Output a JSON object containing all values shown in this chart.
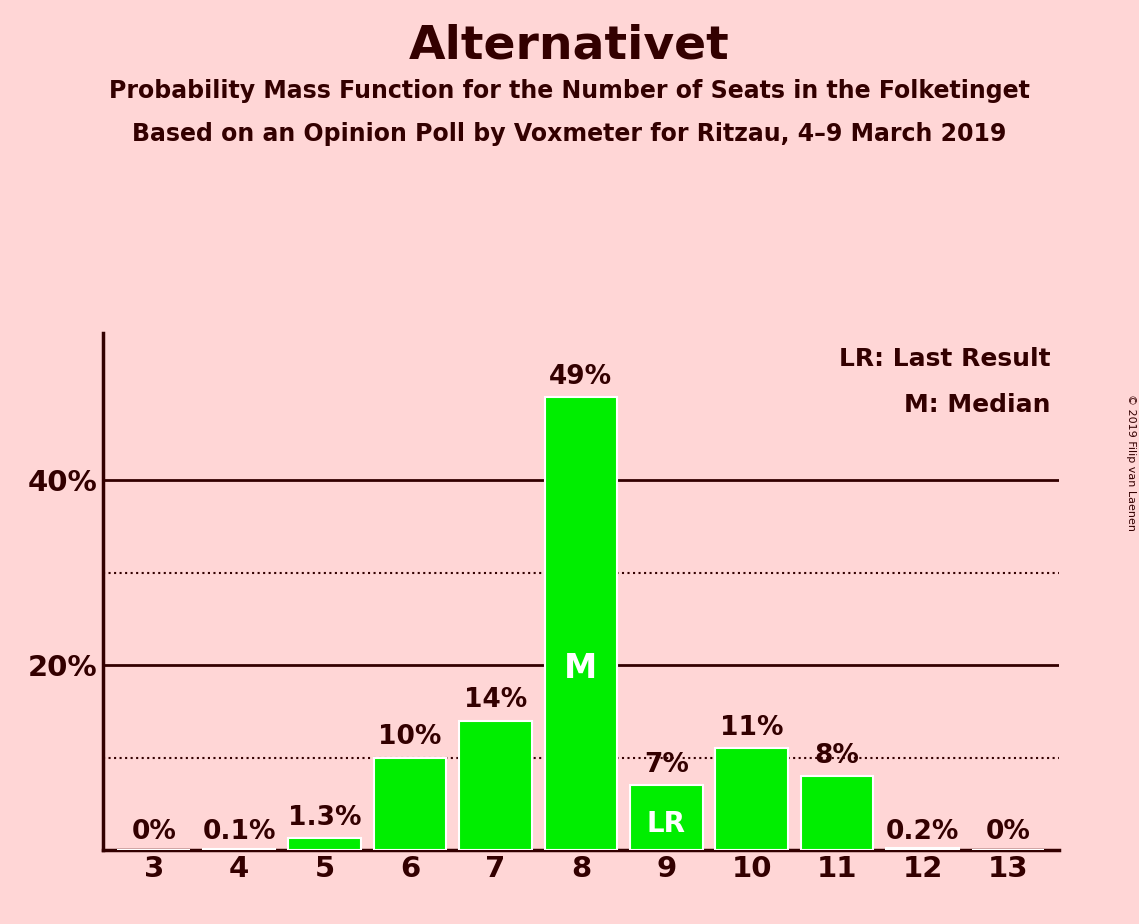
{
  "title": "Alternativet",
  "subtitle1": "Probability Mass Function for the Number of Seats in the Folketinget",
  "subtitle2": "Based on an Opinion Poll by Voxmeter for Ritzau, 4–9 March 2019",
  "copyright": "© 2019 Filip van Laenen",
  "seats": [
    3,
    4,
    5,
    6,
    7,
    8,
    9,
    10,
    11,
    12,
    13
  ],
  "probabilities": [
    0.0,
    0.1,
    1.3,
    10.0,
    14.0,
    49.0,
    7.0,
    11.0,
    8.0,
    0.2,
    0.0
  ],
  "labels": [
    "0%",
    "0.1%",
    "1.3%",
    "10%",
    "14%",
    "49%",
    "7%",
    "11%",
    "8%",
    "0.2%",
    "0%"
  ],
  "bar_color": "#00ee00",
  "background_color": "#ffd6d6",
  "text_color": "#330000",
  "bar_edge_color": "white",
  "median_seat": 8,
  "last_result_seat": 9,
  "median_label": "M",
  "last_result_label": "LR",
  "legend_lr": "LR: Last Result",
  "legend_m": "M: Median",
  "solid_gridlines": [
    20,
    40
  ],
  "dotted_gridlines": [
    10,
    30
  ],
  "ylim": [
    0,
    56
  ],
  "title_fontsize": 34,
  "subtitle_fontsize": 17,
  "bar_label_fontsize": 19,
  "axis_tick_fontsize": 21,
  "legend_fontsize": 18,
  "inner_label_fontsize": 24,
  "ytick_shown": [
    20,
    40
  ],
  "ytick_label_map": {
    "20": "20%",
    "40": "40%"
  }
}
